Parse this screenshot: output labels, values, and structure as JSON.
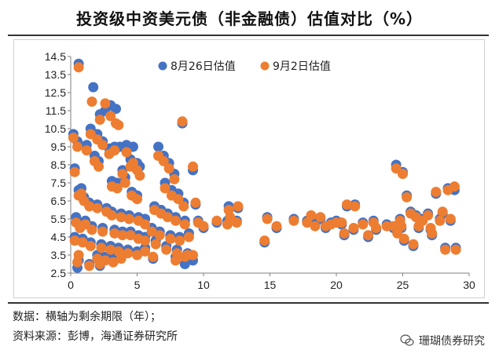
{
  "title": "投资级中资美元债（非金融债）估值对比（%）",
  "footnotes": {
    "line1": "数据：横轴为剩余期限（年）；",
    "line2": "资料来源：彭博，海通证券研究所"
  },
  "watermark": {
    "text": "珊瑚债券研究",
    "icon": "wechat-icon"
  },
  "colors": {
    "aug26": "#4472C4",
    "sep2": "#ED7D31",
    "grid": "#d9d9d9",
    "axis": "#7f7f7f"
  },
  "chart_data": {
    "type": "scatter",
    "title": "投资级中资美元债（非金融债）估值对比（%）",
    "xlabel": "",
    "ylabel": "",
    "xlim": [
      0,
      30
    ],
    "ylim": [
      2.5,
      14.5
    ],
    "x_ticks": [
      0,
      5,
      10,
      15,
      20,
      25,
      30
    ],
    "y_ticks": [
      2.5,
      3.5,
      4.5,
      5.5,
      6.5,
      7.5,
      8.5,
      9.5,
      10.5,
      11.5,
      12.5,
      13.5,
      14.5
    ],
    "legend_position": "top",
    "series": [
      {
        "name": "8月26日估值",
        "points": [
          [
            0.2,
            10.2
          ],
          [
            0.5,
            9.8
          ],
          [
            0.3,
            8.3
          ],
          [
            0.6,
            7.1
          ],
          [
            0.8,
            7.2
          ],
          [
            0.4,
            5.6
          ],
          [
            0.7,
            5.2
          ],
          [
            0.3,
            4.5
          ],
          [
            0.6,
            3.2
          ],
          [
            0.5,
            2.8
          ],
          [
            0.6,
            14.1
          ],
          [
            1.7,
            12.8
          ],
          [
            2.2,
            11.3
          ],
          [
            2.6,
            11.5
          ],
          [
            3.0,
            11.8
          ],
          [
            3.4,
            11.6
          ],
          [
            1.5,
            10.5
          ],
          [
            2.0,
            10.2
          ],
          [
            2.4,
            9.8
          ],
          [
            1.2,
            9.6
          ],
          [
            1.8,
            9.0
          ],
          [
            2.1,
            8.7
          ],
          [
            2.9,
            9.4
          ],
          [
            3.3,
            9.5
          ],
          [
            3.7,
            9.5
          ],
          [
            4.2,
            9.6
          ],
          [
            4.7,
            9.5
          ],
          [
            4.5,
            8.8
          ],
          [
            5.0,
            8.6
          ],
          [
            5.2,
            8.4
          ],
          [
            3.9,
            8.2
          ],
          [
            4.1,
            7.8
          ],
          [
            3.5,
            7.5
          ],
          [
            3.1,
            7.6
          ],
          [
            4.6,
            7.0
          ],
          [
            5.0,
            6.8
          ],
          [
            1.0,
            6.7
          ],
          [
            1.4,
            6.4
          ],
          [
            2.0,
            6.3
          ],
          [
            2.7,
            6.1
          ],
          [
            3.1,
            5.9
          ],
          [
            3.8,
            5.8
          ],
          [
            4.4,
            5.7
          ],
          [
            5.1,
            5.6
          ],
          [
            5.6,
            5.5
          ],
          [
            1.1,
            5.4
          ],
          [
            1.6,
            5.1
          ],
          [
            2.4,
            5.0
          ],
          [
            3.3,
            4.9
          ],
          [
            3.9,
            4.8
          ],
          [
            4.5,
            4.8
          ],
          [
            5.1,
            4.6
          ],
          [
            5.6,
            4.5
          ],
          [
            0.9,
            4.4
          ],
          [
            1.5,
            4.2
          ],
          [
            2.3,
            4.1
          ],
          [
            3.0,
            4.0
          ],
          [
            3.6,
            3.9
          ],
          [
            4.3,
            3.8
          ],
          [
            5.0,
            3.7
          ],
          [
            5.6,
            3.9
          ],
          [
            2.0,
            3.5
          ],
          [
            2.6,
            3.4
          ],
          [
            3.2,
            3.3
          ],
          [
            3.8,
            3.5
          ],
          [
            1.4,
            3.0
          ],
          [
            2.2,
            2.9
          ],
          [
            6.2,
            3.3
          ],
          [
            6.6,
            9.5
          ],
          [
            7.0,
            9.0
          ],
          [
            7.4,
            8.6
          ],
          [
            7.8,
            8.0
          ],
          [
            7.1,
            7.5
          ],
          [
            7.6,
            7.1
          ],
          [
            8.1,
            6.9
          ],
          [
            8.5,
            6.4
          ],
          [
            6.3,
            6.2
          ],
          [
            6.8,
            6.0
          ],
          [
            7.3,
            5.8
          ],
          [
            7.9,
            5.6
          ],
          [
            8.6,
            5.4
          ],
          [
            6.1,
            5.0
          ],
          [
            6.7,
            4.8
          ],
          [
            7.5,
            4.6
          ],
          [
            8.2,
            4.5
          ],
          [
            8.9,
            4.7
          ],
          [
            6.4,
            4.3
          ],
          [
            7.2,
            4.0
          ],
          [
            8.0,
            3.8
          ],
          [
            8.8,
            3.6
          ],
          [
            7.9,
            3.4
          ],
          [
            8.6,
            3.0
          ],
          [
            9.2,
            3.2
          ],
          [
            8.4,
            10.8
          ],
          [
            9.2,
            8.2
          ],
          [
            9.4,
            6.3
          ],
          [
            9.6,
            5.4
          ],
          [
            10.0,
            5.0
          ],
          [
            11.0,
            5.3
          ],
          [
            11.8,
            5.4
          ],
          [
            12.0,
            5.5
          ],
          [
            12.5,
            5.4
          ],
          [
            11.9,
            6.2
          ],
          [
            12.6,
            6.1
          ],
          [
            14.6,
            4.2
          ],
          [
            14.8,
            5.6
          ],
          [
            15.5,
            5.0
          ],
          [
            16.8,
            5.5
          ],
          [
            17.8,
            5.4
          ],
          [
            18.1,
            5.6
          ],
          [
            18.4,
            5.2
          ],
          [
            18.8,
            5.5
          ],
          [
            19.2,
            5.0
          ],
          [
            19.6,
            5.3
          ],
          [
            20.0,
            5.4
          ],
          [
            20.4,
            5.2
          ],
          [
            20.6,
            4.6
          ],
          [
            20.8,
            6.2
          ],
          [
            21.3,
            4.9
          ],
          [
            21.4,
            6.3
          ],
          [
            22.0,
            5.3
          ],
          [
            22.4,
            4.5
          ],
          [
            22.8,
            5.4
          ],
          [
            23.0,
            4.9
          ],
          [
            23.8,
            5.2
          ],
          [
            24.3,
            5.0
          ],
          [
            24.8,
            5.5
          ],
          [
            24.5,
            8.5
          ],
          [
            25.0,
            8.1
          ],
          [
            24.6,
            4.8
          ],
          [
            24.9,
            5.0
          ],
          [
            25.1,
            4.3
          ],
          [
            25.3,
            6.8
          ],
          [
            25.6,
            5.9
          ],
          [
            26.0,
            5.7
          ],
          [
            25.8,
            4.0
          ],
          [
            26.2,
            5.0
          ],
          [
            26.5,
            5.5
          ],
          [
            26.9,
            5.8
          ],
          [
            27.1,
            4.9
          ],
          [
            27.2,
            4.6
          ],
          [
            27.5,
            6.9
          ],
          [
            27.8,
            5.5
          ],
          [
            28.0,
            5.8
          ],
          [
            28.2,
            3.9
          ],
          [
            28.4,
            7.2
          ],
          [
            28.6,
            5.4
          ],
          [
            28.9,
            7.1
          ],
          [
            29.0,
            3.9
          ]
        ]
      },
      {
        "name": "9月2日估值",
        "points": [
          [
            0.2,
            10.0
          ],
          [
            0.5,
            9.5
          ],
          [
            0.3,
            8.1
          ],
          [
            0.6,
            6.8
          ],
          [
            0.8,
            6.9
          ],
          [
            0.4,
            5.3
          ],
          [
            0.7,
            5.0
          ],
          [
            0.3,
            4.3
          ],
          [
            0.6,
            3.5
          ],
          [
            0.5,
            3.1
          ],
          [
            0.6,
            13.9
          ],
          [
            1.6,
            12.0
          ],
          [
            2.2,
            11.0
          ],
          [
            2.6,
            11.9
          ],
          [
            3.0,
            11.2
          ],
          [
            3.4,
            10.8
          ],
          [
            1.5,
            10.2
          ],
          [
            2.0,
            9.9
          ],
          [
            2.4,
            9.6
          ],
          [
            1.2,
            9.3
          ],
          [
            1.8,
            8.7
          ],
          [
            2.1,
            8.4
          ],
          [
            2.9,
            9.1
          ],
          [
            3.3,
            9.3
          ],
          [
            3.6,
            10.7
          ],
          [
            4.2,
            9.2
          ],
          [
            4.7,
            8.6
          ],
          [
            4.5,
            8.4
          ],
          [
            5.0,
            8.2
          ],
          [
            5.2,
            7.9
          ],
          [
            3.9,
            8.0
          ],
          [
            4.1,
            7.5
          ],
          [
            3.5,
            7.2
          ],
          [
            3.1,
            7.3
          ],
          [
            4.6,
            6.8
          ],
          [
            5.0,
            6.6
          ],
          [
            1.0,
            6.5
          ],
          [
            1.4,
            6.2
          ],
          [
            2.0,
            6.1
          ],
          [
            2.7,
            5.9
          ],
          [
            3.1,
            5.7
          ],
          [
            3.8,
            5.6
          ],
          [
            4.4,
            5.5
          ],
          [
            5.1,
            5.4
          ],
          [
            5.6,
            5.2
          ],
          [
            1.1,
            5.2
          ],
          [
            1.6,
            4.9
          ],
          [
            2.4,
            4.8
          ],
          [
            3.3,
            4.7
          ],
          [
            3.9,
            4.6
          ],
          [
            4.5,
            4.6
          ],
          [
            5.1,
            4.4
          ],
          [
            5.6,
            4.3
          ],
          [
            0.9,
            4.2
          ],
          [
            1.5,
            4.0
          ],
          [
            2.3,
            3.9
          ],
          [
            3.0,
            3.8
          ],
          [
            3.6,
            3.7
          ],
          [
            4.3,
            3.6
          ],
          [
            5.0,
            3.5
          ],
          [
            5.6,
            3.7
          ],
          [
            2.0,
            3.3
          ],
          [
            2.6,
            3.2
          ],
          [
            3.2,
            3.1
          ],
          [
            3.8,
            3.3
          ],
          [
            1.4,
            2.9
          ],
          [
            2.2,
            3.0
          ],
          [
            6.2,
            3.4
          ],
          [
            6.6,
            9.0
          ],
          [
            7.0,
            8.7
          ],
          [
            7.4,
            8.3
          ],
          [
            7.8,
            7.7
          ],
          [
            7.1,
            7.2
          ],
          [
            7.6,
            6.8
          ],
          [
            8.1,
            6.6
          ],
          [
            8.5,
            6.2
          ],
          [
            6.3,
            6.0
          ],
          [
            6.8,
            5.8
          ],
          [
            7.3,
            5.6
          ],
          [
            7.9,
            5.4
          ],
          [
            8.6,
            5.2
          ],
          [
            6.1,
            4.8
          ],
          [
            6.7,
            4.6
          ],
          [
            7.5,
            4.4
          ],
          [
            8.2,
            4.3
          ],
          [
            8.9,
            4.5
          ],
          [
            6.4,
            4.1
          ],
          [
            7.2,
            3.8
          ],
          [
            8.0,
            3.6
          ],
          [
            8.8,
            3.5
          ],
          [
            7.9,
            3.2
          ],
          [
            8.6,
            3.4
          ],
          [
            9.2,
            3.5
          ],
          [
            8.4,
            10.9
          ],
          [
            9.2,
            8.4
          ],
          [
            9.4,
            6.4
          ],
          [
            9.6,
            5.3
          ],
          [
            10.0,
            5.1
          ],
          [
            11.0,
            5.4
          ],
          [
            11.8,
            5.2
          ],
          [
            12.0,
            5.6
          ],
          [
            12.5,
            5.3
          ],
          [
            11.9,
            6.0
          ],
          [
            12.6,
            6.2
          ],
          [
            14.6,
            4.3
          ],
          [
            14.8,
            5.5
          ],
          [
            15.5,
            5.1
          ],
          [
            16.8,
            5.4
          ],
          [
            17.8,
            5.3
          ],
          [
            18.1,
            5.7
          ],
          [
            18.4,
            5.1
          ],
          [
            18.8,
            5.6
          ],
          [
            19.2,
            5.1
          ],
          [
            19.6,
            5.2
          ],
          [
            20.0,
            5.3
          ],
          [
            20.4,
            5.3
          ],
          [
            20.6,
            4.7
          ],
          [
            20.8,
            6.3
          ],
          [
            21.3,
            5.0
          ],
          [
            21.4,
            6.2
          ],
          [
            22.0,
            5.2
          ],
          [
            22.4,
            4.6
          ],
          [
            22.8,
            5.3
          ],
          [
            23.0,
            5.0
          ],
          [
            23.8,
            5.1
          ],
          [
            24.3,
            5.1
          ],
          [
            24.8,
            5.4
          ],
          [
            24.5,
            8.3
          ],
          [
            25.0,
            8.0
          ],
          [
            24.6,
            4.7
          ],
          [
            24.9,
            5.1
          ],
          [
            25.1,
            4.4
          ],
          [
            25.3,
            6.7
          ],
          [
            25.6,
            5.8
          ],
          [
            26.0,
            5.6
          ],
          [
            25.8,
            4.1
          ],
          [
            26.2,
            5.1
          ],
          [
            26.5,
            5.4
          ],
          [
            26.9,
            5.7
          ],
          [
            27.1,
            5.0
          ],
          [
            27.2,
            4.7
          ],
          [
            27.5,
            7.0
          ],
          [
            27.8,
            5.4
          ],
          [
            28.0,
            5.9
          ],
          [
            28.2,
            3.8
          ],
          [
            28.4,
            7.1
          ],
          [
            28.6,
            5.5
          ],
          [
            28.9,
            7.3
          ],
          [
            29.0,
            3.8
          ]
        ]
      }
    ]
  }
}
